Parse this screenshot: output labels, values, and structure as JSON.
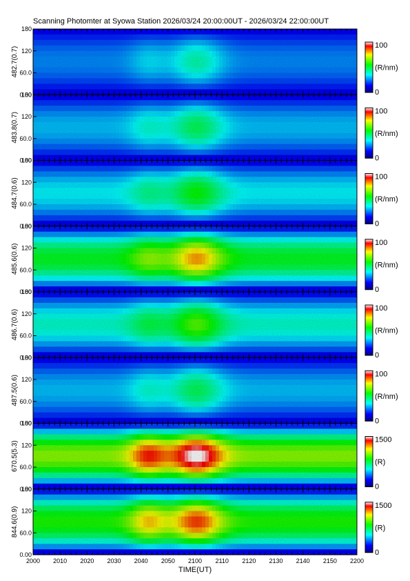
{
  "title": "Scanning Photomter at Syowa Station 2026/03/24 20:00:00UT - 2026/03/24 22:00:00UT",
  "chart_data": {
    "type": "heatmap",
    "xlabel": "TIME(UT)",
    "x_ticks": [
      "2000",
      "2010",
      "2020",
      "2030",
      "2040",
      "2050",
      "2100",
      "2110",
      "2120",
      "2130",
      "2140",
      "2150",
      "2200"
    ],
    "xlim": [
      "20:00",
      "22:00"
    ],
    "y_ticks": [
      "0.00",
      "60.0",
      "120",
      "180"
    ],
    "ylim": [
      0,
      180
    ],
    "colorscale": [
      "#000080",
      "#0000ff",
      "#00ffff",
      "#00ff00",
      "#ffff00",
      "#ff0000",
      "#ffffff"
    ],
    "panels": [
      {
        "ylabel": "482.7(0.7)",
        "cb_max": "100",
        "cb_min": "0",
        "cb_unit": "(R/nm)",
        "level": 0.15
      },
      {
        "ylabel": "483.8(0.7)",
        "cb_max": "100",
        "cb_min": "0",
        "cb_unit": "(R/nm)",
        "level": 0.2
      },
      {
        "ylabel": "484.7(0.6)",
        "cb_max": "100",
        "cb_min": "0",
        "cb_unit": "(R/nm)",
        "level": 0.25
      },
      {
        "ylabel": "485.6(0.6)",
        "cb_max": "100",
        "cb_min": "0",
        "cb_unit": "(R/nm)",
        "level": 0.45
      },
      {
        "ylabel": "486.7(0.6)",
        "cb_max": "100",
        "cb_min": "0",
        "cb_unit": "(R/nm)",
        "level": 0.3
      },
      {
        "ylabel": "487.5(0.6)",
        "cb_max": "100",
        "cb_min": "0",
        "cb_unit": "(R/nm)",
        "level": 0.2
      },
      {
        "ylabel": "670.5(5.3)",
        "cb_max": "1500",
        "cb_min": "0",
        "cb_unit": "(R)",
        "level": 0.6
      },
      {
        "ylabel": "844.6(0.9)",
        "cb_max": "1500",
        "cb_min": "0",
        "cb_unit": "(R)",
        "level": 0.5
      }
    ]
  }
}
